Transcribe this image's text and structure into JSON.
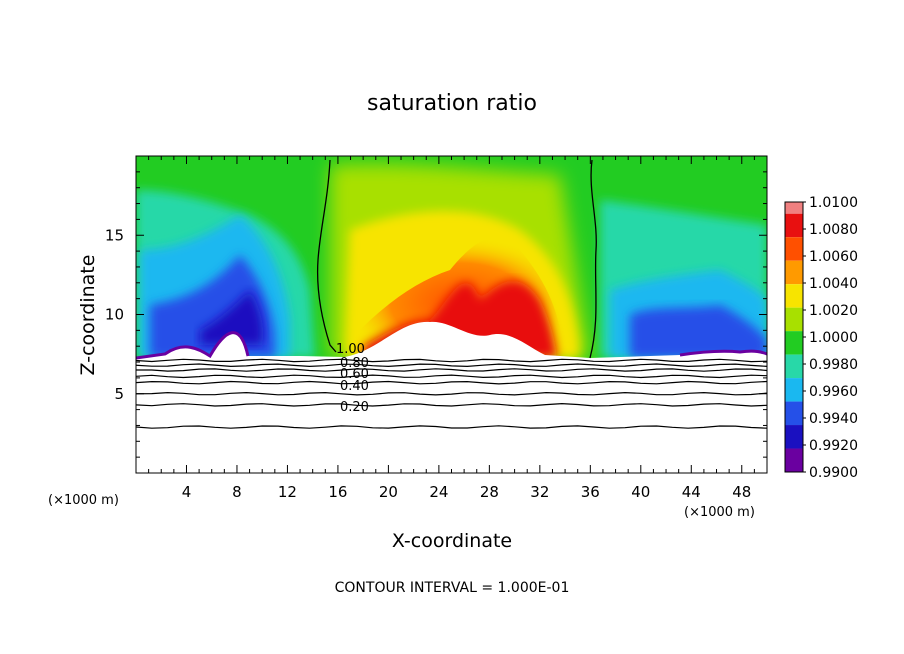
{
  "chart_data": {
    "type": "heatmap",
    "title": "saturation ratio",
    "xlabel": "X-coordinate",
    "ylabel": "Z-coordinate",
    "x_unit_label": "(×1000 m)",
    "z_unit_label": "(×1000 m)",
    "xlim": [
      0,
      50
    ],
    "zlim": [
      0,
      20
    ],
    "x_ticks": [
      4,
      8,
      12,
      16,
      20,
      24,
      28,
      32,
      36,
      40,
      44,
      48
    ],
    "z_ticks": [
      5,
      10,
      15
    ],
    "footer": "CONTOUR INTERVAL = 1.000E-01",
    "colorbar": {
      "levels": [
        "1.0100",
        "1.0080",
        "1.0060",
        "1.0040",
        "1.0020",
        "1.0000",
        "0.9980",
        "0.9960",
        "0.9940",
        "0.9920",
        "0.9900"
      ],
      "colors": [
        "#f08080",
        "#e81010",
        "#ff5000",
        "#ff9a00",
        "#f7e400",
        "#a8e000",
        "#22cc22",
        "#28d8a8",
        "#1ab8f0",
        "#2550e8",
        "#1a10c0",
        "#6a00a0"
      ]
    },
    "contour_labels": [
      "0.20",
      "0.40",
      "0.60",
      "0.80",
      "1.00"
    ],
    "contour_levels_z": [
      2.9,
      4.3,
      5.0,
      5.7,
      6.1,
      6.5,
      6.8,
      7.1
    ]
  }
}
